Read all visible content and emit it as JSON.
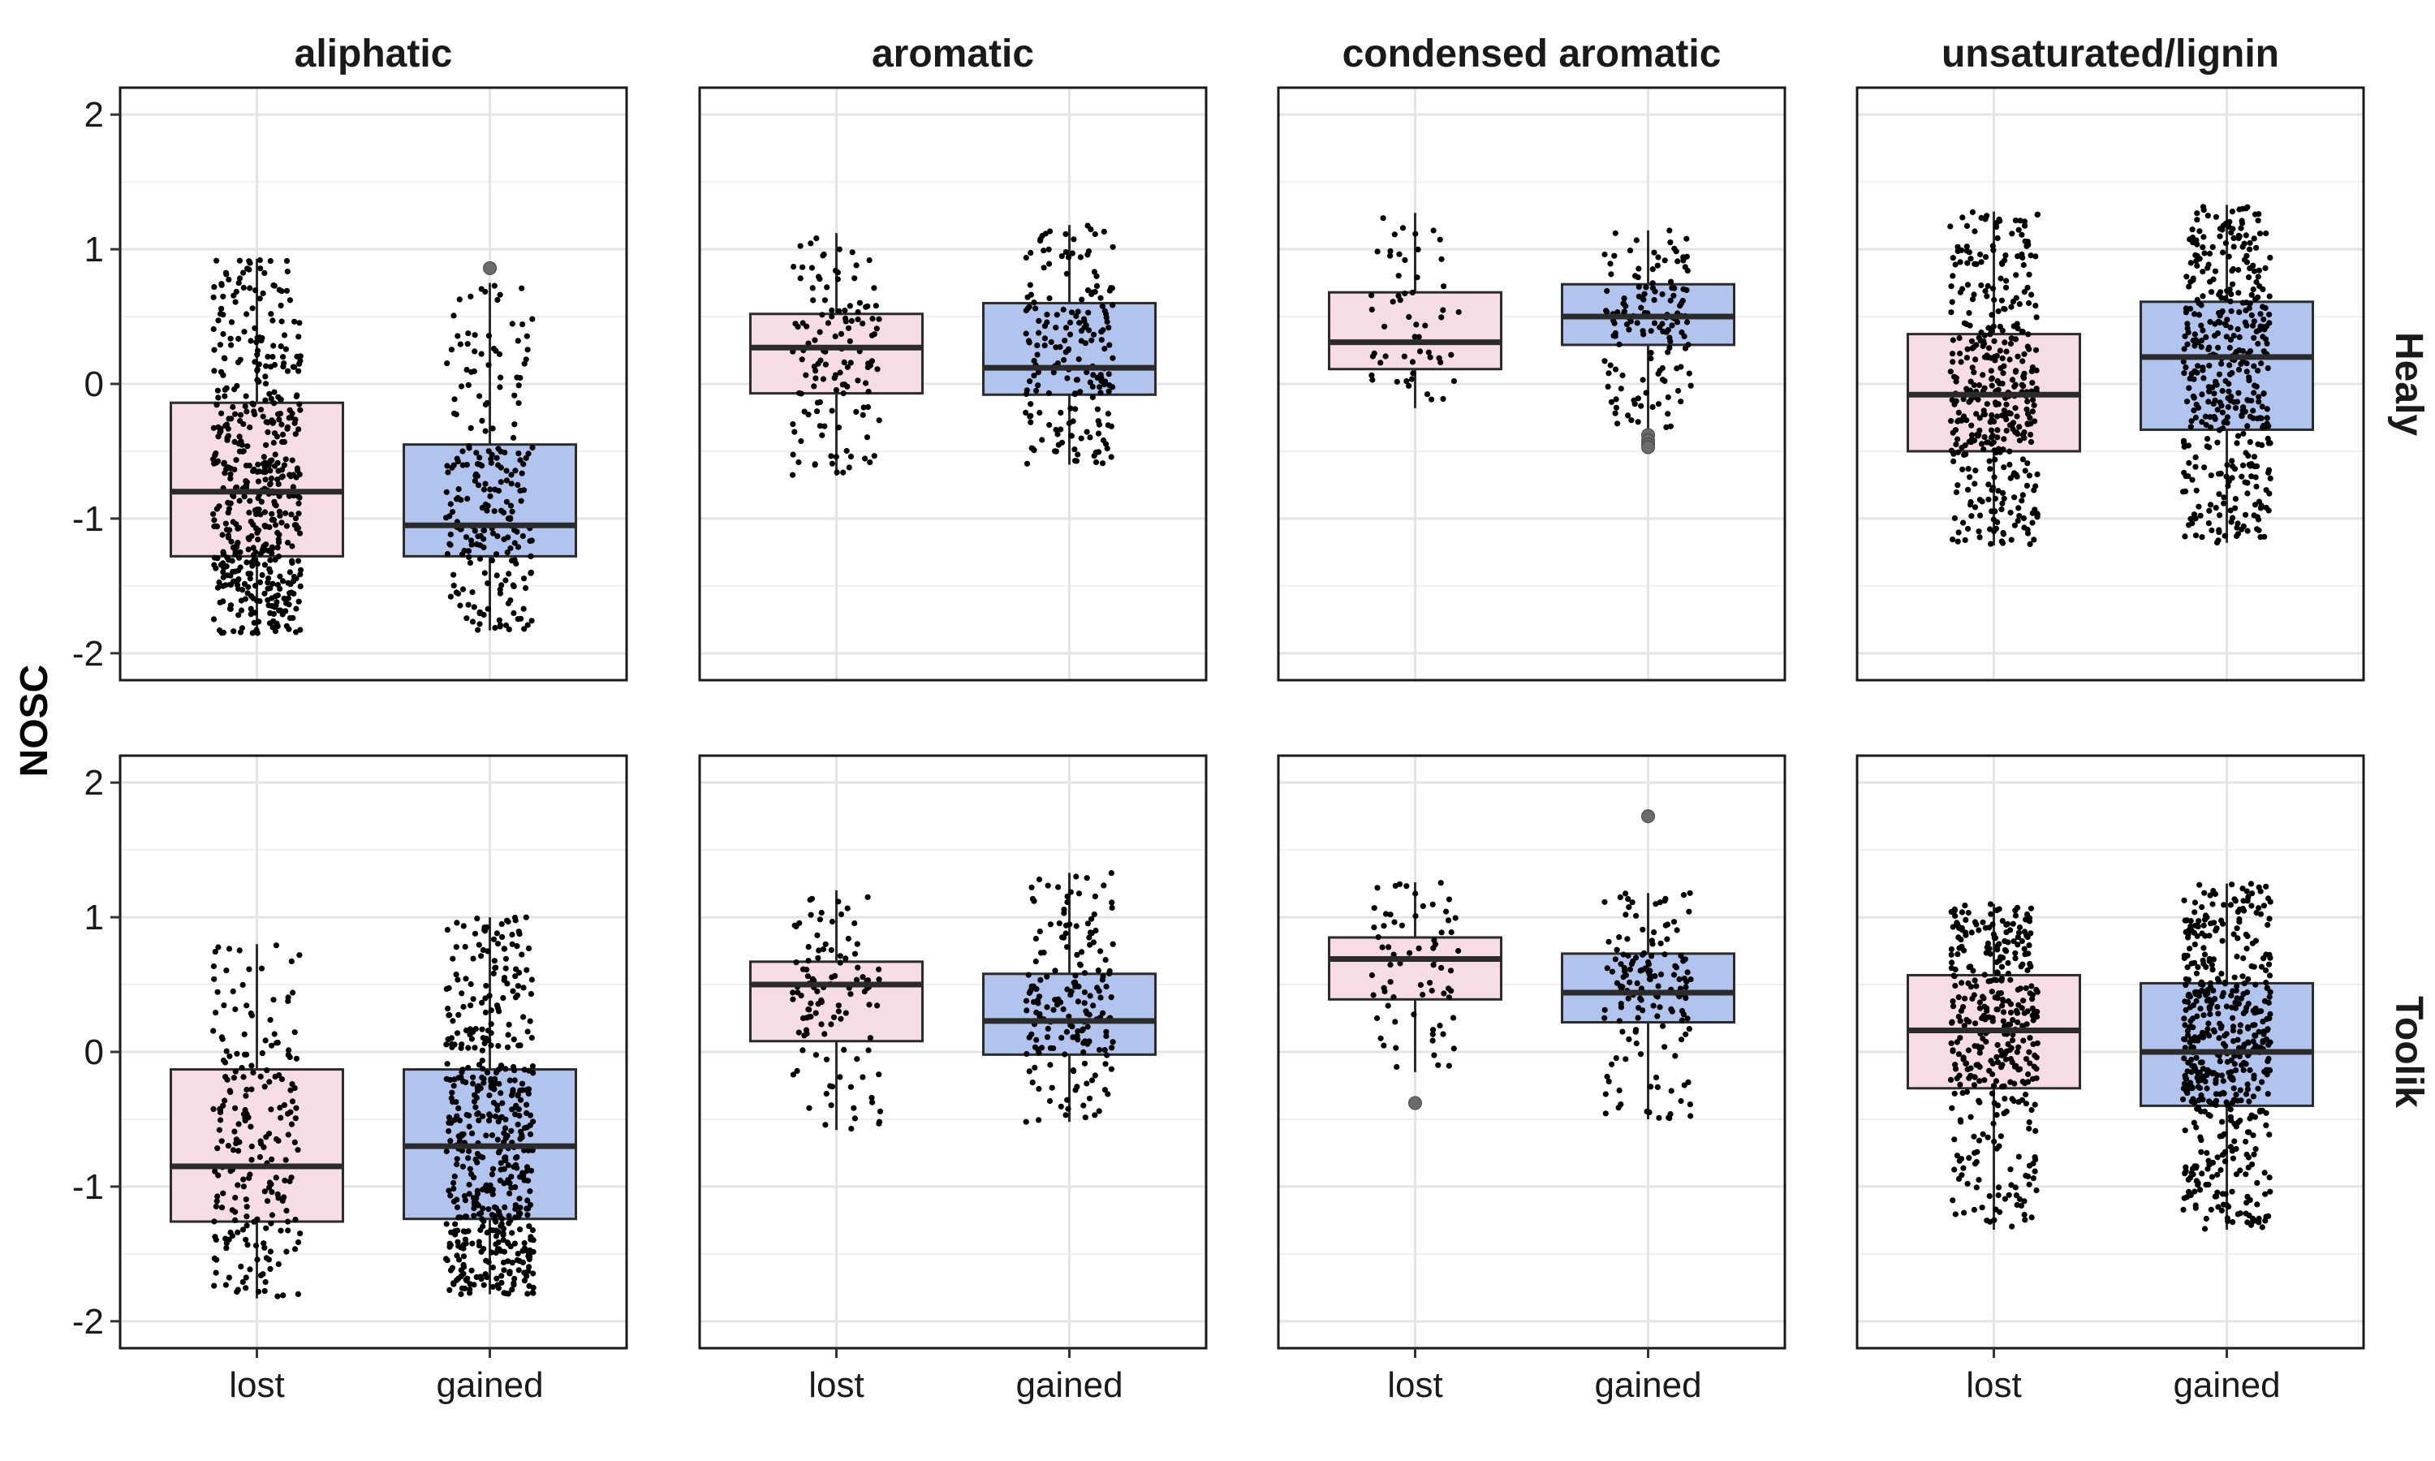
{
  "chart_data": {
    "type": "boxplot",
    "ylabel": "NOSC",
    "xlabel": "",
    "ylim": [
      -2.2,
      2.2
    ],
    "yticks": [
      -2,
      -1,
      0,
      1,
      2
    ],
    "categories": [
      "lost",
      "gained"
    ],
    "facet_columns": [
      "aliphatic",
      "aromatic",
      "condensed aromatic",
      "unsaturated/lignin"
    ],
    "facet_rows": [
      "Healy",
      "Toolik"
    ],
    "colors": {
      "lost": "#f5dde3",
      "gained": "#b0c4ed",
      "point": "#000000",
      "outlier": "#6b6b6b"
    },
    "grid": true,
    "panels": [
      {
        "row": "Healy",
        "column": "aliphatic",
        "boxes": [
          {
            "category": "lost",
            "whisker_low": -1.85,
            "q1": -1.28,
            "median": -0.8,
            "q3": -0.14,
            "whisker_high": 0.93,
            "outliers": [],
            "n_points": 520
          },
          {
            "category": "gained",
            "whisker_low": -1.83,
            "q1": -1.28,
            "median": -1.05,
            "q3": -0.45,
            "whisker_high": 0.75,
            "outliers": [
              0.86
            ],
            "n_points": 230
          }
        ]
      },
      {
        "row": "Healy",
        "column": "aromatic",
        "boxes": [
          {
            "category": "lost",
            "whisker_low": -0.68,
            "q1": -0.07,
            "median": 0.27,
            "q3": 0.52,
            "whisker_high": 1.12,
            "outliers": [],
            "n_points": 130
          },
          {
            "category": "gained",
            "whisker_low": -0.6,
            "q1": -0.08,
            "median": 0.12,
            "q3": 0.6,
            "whisker_high": 1.18,
            "outliers": [],
            "n_points": 190
          }
        ]
      },
      {
        "row": "Healy",
        "column": "condensed aromatic",
        "boxes": [
          {
            "category": "lost",
            "whisker_low": -0.18,
            "q1": 0.11,
            "median": 0.31,
            "q3": 0.68,
            "whisker_high": 1.27,
            "outliers": [],
            "n_points": 55
          },
          {
            "category": "gained",
            "whisker_low": -0.35,
            "q1": 0.29,
            "median": 0.5,
            "q3": 0.74,
            "whisker_high": 1.14,
            "outliers": [
              -0.38,
              -0.42,
              -0.45,
              -0.47
            ],
            "n_points": 140
          }
        ]
      },
      {
        "row": "Healy",
        "column": "unsaturated/lignin",
        "boxes": [
          {
            "category": "lost",
            "whisker_low": -1.2,
            "q1": -0.5,
            "median": -0.08,
            "q3": 0.37,
            "whisker_high": 1.28,
            "outliers": [],
            "n_points": 400
          },
          {
            "category": "gained",
            "whisker_low": -1.18,
            "q1": -0.34,
            "median": 0.2,
            "q3": 0.61,
            "whisker_high": 1.33,
            "outliers": [],
            "n_points": 420
          }
        ]
      },
      {
        "row": "Toolik",
        "column": "aliphatic",
        "boxes": [
          {
            "category": "lost",
            "whisker_low": -1.83,
            "q1": -1.26,
            "median": -0.85,
            "q3": -0.13,
            "whisker_high": 0.8,
            "outliers": [],
            "n_points": 220
          },
          {
            "category": "gained",
            "whisker_low": -1.8,
            "q1": -1.24,
            "median": -0.7,
            "q3": -0.13,
            "whisker_high": 1.0,
            "outliers": [],
            "n_points": 520
          }
        ]
      },
      {
        "row": "Toolik",
        "column": "aromatic",
        "boxes": [
          {
            "category": "lost",
            "whisker_low": -0.58,
            "q1": 0.08,
            "median": 0.5,
            "q3": 0.67,
            "whisker_high": 1.2,
            "outliers": [],
            "n_points": 110
          },
          {
            "category": "gained",
            "whisker_low": -0.52,
            "q1": -0.02,
            "median": 0.23,
            "q3": 0.58,
            "whisker_high": 1.33,
            "outliers": [],
            "n_points": 180
          }
        ]
      },
      {
        "row": "Toolik",
        "column": "condensed aromatic",
        "boxes": [
          {
            "category": "lost",
            "whisker_low": -0.15,
            "q1": 0.39,
            "median": 0.69,
            "q3": 0.85,
            "whisker_high": 1.26,
            "outliers": [
              -0.38
            ],
            "n_points": 70
          },
          {
            "category": "gained",
            "whisker_low": -0.5,
            "q1": 0.22,
            "median": 0.44,
            "q3": 0.73,
            "whisker_high": 1.18,
            "outliers": [
              1.75
            ],
            "n_points": 150
          }
        ]
      },
      {
        "row": "Toolik",
        "column": "unsaturated/lignin",
        "boxes": [
          {
            "category": "lost",
            "whisker_low": -1.32,
            "q1": -0.27,
            "median": 0.16,
            "q3": 0.57,
            "whisker_high": 1.1,
            "outliers": [],
            "n_points": 380
          },
          {
            "category": "gained",
            "whisker_low": -1.32,
            "q1": -0.4,
            "median": 0.0,
            "q3": 0.51,
            "whisker_high": 1.25,
            "outliers": [],
            "n_points": 520
          }
        ]
      }
    ]
  }
}
